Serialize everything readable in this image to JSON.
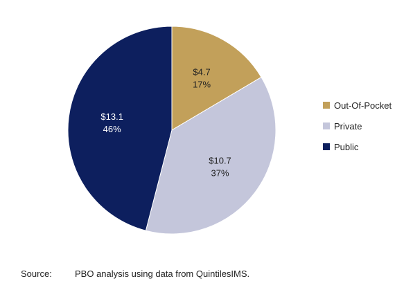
{
  "chart_data": {
    "type": "pie",
    "title": "",
    "slices": [
      {
        "name": "Out-Of-Pocket",
        "value": 4.7,
        "value_label": "$4.7",
        "percent_label": "17%",
        "color": "#c2a05a",
        "label_color": "#222222"
      },
      {
        "name": "Private",
        "value": 10.7,
        "value_label": "$10.7",
        "percent_label": "37%",
        "color": "#c4c6db",
        "label_color": "#222222"
      },
      {
        "name": "Public",
        "value": 13.1,
        "value_label": "$13.1",
        "percent_label": "46%",
        "color": "#0d1f5e",
        "label_color": "#ffffff"
      }
    ],
    "legend": {
      "placement": "right",
      "items": [
        "Out-Of-Pocket",
        "Private",
        "Public"
      ]
    },
    "start_angle": "12 o'clock",
    "direction": "clockwise"
  },
  "source": {
    "label": "Source:",
    "text": "PBO analysis using data from QuintilesIMS."
  }
}
